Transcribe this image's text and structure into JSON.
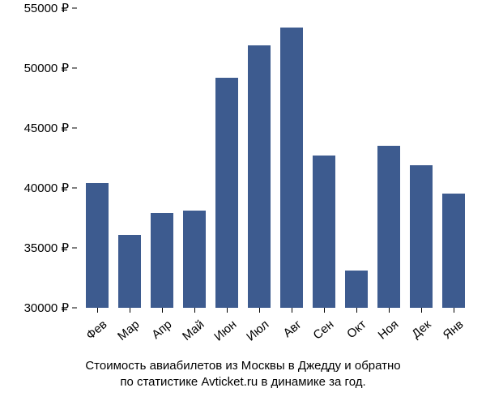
{
  "chart": {
    "type": "bar",
    "categories": [
      "Фев",
      "Мар",
      "Апр",
      "Май",
      "Июн",
      "Июл",
      "Авг",
      "Сен",
      "Окт",
      "Ноя",
      "Дек",
      "Янв"
    ],
    "values": [
      40400,
      36100,
      37900,
      38100,
      49200,
      51900,
      53400,
      42700,
      33100,
      43500,
      41900,
      39500
    ],
    "bar_color": "#3d5b8f",
    "background_color": "#ffffff",
    "ylim": [
      30000,
      55000
    ],
    "ytick_step": 5000,
    "ytick_suffix": " ₽",
    "label_fontsize": 15,
    "caption_fontsize": 15,
    "bar_width": 0.72,
    "x_label_rotation": -40,
    "caption_line1": "Стоимость авиабилетов из Москвы в Джедду и обратно",
    "caption_line2": "по статистике Avticket.ru в динамике за год."
  }
}
